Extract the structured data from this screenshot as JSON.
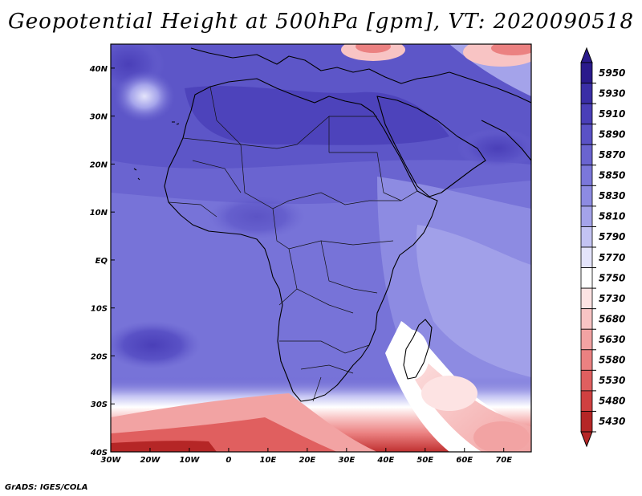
{
  "title": "Geopotential Height at 500hPa [gpm], VT: 2020090518",
  "credit": "GrADS: IGES/COLA",
  "map": {
    "lon_range": [
      -30,
      77
    ],
    "lat_range": [
      -40,
      45
    ],
    "x_ticks": [
      {
        "lon": -30,
        "label": "30W"
      },
      {
        "lon": -20,
        "label": "20W"
      },
      {
        "lon": -10,
        "label": "10W"
      },
      {
        "lon": 0,
        "label": "0"
      },
      {
        "lon": 10,
        "label": "10E"
      },
      {
        "lon": 20,
        "label": "20E"
      },
      {
        "lon": 30,
        "label": "30E"
      },
      {
        "lon": 40,
        "label": "40E"
      },
      {
        "lon": 50,
        "label": "50E"
      },
      {
        "lon": 60,
        "label": "60E"
      },
      {
        "lon": 70,
        "label": "70E"
      }
    ],
    "y_ticks": [
      {
        "lat": 40,
        "label": "40N"
      },
      {
        "lat": 30,
        "label": "30N"
      },
      {
        "lat": 20,
        "label": "20N"
      },
      {
        "lat": 10,
        "label": "10N"
      },
      {
        "lat": 0,
        "label": "EQ"
      },
      {
        "lat": -10,
        "label": "10S"
      },
      {
        "lat": -20,
        "label": "20S"
      },
      {
        "lat": -30,
        "label": "30S"
      },
      {
        "lat": -40,
        "label": "40S"
      }
    ]
  },
  "colorbar": {
    "levels": [
      {
        "value": "5950",
        "color": "#2a1a8c"
      },
      {
        "value": "5930",
        "color": "#3a2ea6"
      },
      {
        "value": "5910",
        "color": "#4a3fb8"
      },
      {
        "value": "5890",
        "color": "#5a52c6"
      },
      {
        "value": "5870",
        "color": "#6a64d0"
      },
      {
        "value": "5850",
        "color": "#7b77da"
      },
      {
        "value": "5830",
        "color": "#8d8be2"
      },
      {
        "value": "5810",
        "color": "#a4a3ea"
      },
      {
        "value": "5790",
        "color": "#c3c3f3"
      },
      {
        "value": "5770",
        "color": "#e4e4fb"
      },
      {
        "value": "5750",
        "color": "#ffffff"
      },
      {
        "value": "5730",
        "color": "#fde3e3"
      },
      {
        "value": "5680",
        "color": "#f8c4c4"
      },
      {
        "value": "5630",
        "color": "#f2a3a3"
      },
      {
        "value": "5580",
        "color": "#eb8181"
      },
      {
        "value": "5530",
        "color": "#e05f5f"
      },
      {
        "value": "5480",
        "color": "#d04040"
      },
      {
        "value": "5430",
        "color": "#b52626"
      }
    ]
  }
}
